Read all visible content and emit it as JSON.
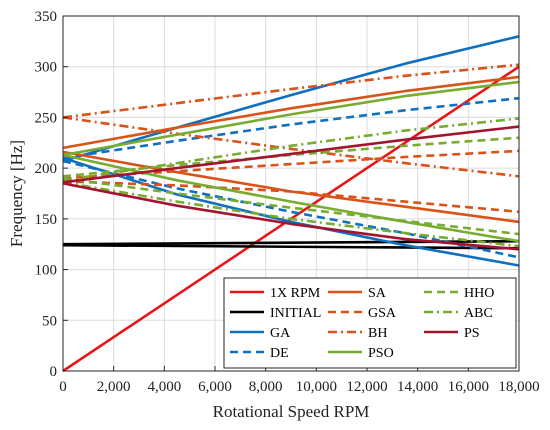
{
  "chart_data": {
    "type": "line",
    "xlabel": "Rotational Speed RPM",
    "ylabel": "Frequency [Hz]",
    "xlim": [
      0,
      18000
    ],
    "ylim": [
      0,
      350
    ],
    "xticks": [
      0,
      2000,
      4000,
      6000,
      8000,
      10000,
      12000,
      14000,
      16000,
      18000
    ],
    "xtick_labels": [
      "0",
      "2,000",
      "4,000",
      "6,000",
      "8,000",
      "10,000",
      "12,000",
      "14,000",
      "16,000",
      "18,000"
    ],
    "yticks": [
      0,
      50,
      100,
      150,
      200,
      250,
      300,
      350
    ],
    "ytick_labels": [
      "0",
      "50",
      "100",
      "150",
      "200",
      "250",
      "300",
      "350"
    ],
    "grid": true,
    "legend_position": "bottom-right",
    "legend": [
      "1X RPM",
      "INITIAL",
      "GA",
      "DE",
      "SA",
      "GSA",
      "BH",
      "PSO",
      "HHO",
      "ABC",
      "PS"
    ],
    "series": [
      {
        "name": "1X RPM",
        "color": "#e8161b",
        "dash": "solid",
        "x": [
          0,
          18000
        ],
        "y": [
          0,
          300
        ]
      },
      {
        "name": "INITIAL",
        "color": "#000000",
        "dash": "solid",
        "x": [
          0,
          18000
        ],
        "y": [
          125,
          128
        ]
      },
      {
        "name": "INITIAL",
        "color": "#000000",
        "dash": "solid",
        "x": [
          0,
          18000
        ],
        "y": [
          124,
          121
        ]
      },
      {
        "name": "GA",
        "color": "#1070c0",
        "dash": "solid",
        "x": [
          0,
          4500,
          9000,
          13500,
          18000
        ],
        "y": [
          207,
          240,
          272,
          303,
          330
        ]
      },
      {
        "name": "GA",
        "color": "#1070c0",
        "dash": "solid",
        "x": [
          0,
          4500,
          9000,
          13500,
          18000
        ],
        "y": [
          210,
          174,
          147,
          124,
          104
        ]
      },
      {
        "name": "DE",
        "color": "#1070c0",
        "dash": "dash",
        "x": [
          0,
          4500,
          9000,
          13500,
          18000
        ],
        "y": [
          210,
          227,
          243,
          257,
          269
        ]
      },
      {
        "name": "DE",
        "color": "#1070c0",
        "dash": "dash",
        "x": [
          0,
          4500,
          9000,
          13500,
          18000
        ],
        "y": [
          207,
          180,
          157,
          136,
          112
        ]
      },
      {
        "name": "SA",
        "color": "#d95319",
        "dash": "solid",
        "x": [
          0,
          4500,
          9000,
          13500,
          18000
        ],
        "y": [
          220,
          240,
          259,
          276,
          290
        ]
      },
      {
        "name": "SA",
        "color": "#d95319",
        "dash": "solid",
        "x": [
          0,
          4500,
          9000,
          13500,
          18000
        ],
        "y": [
          216,
          196,
          177,
          162,
          147
        ]
      },
      {
        "name": "GSA",
        "color": "#d95319",
        "dash": "dash",
        "x": [
          0,
          4500,
          9000,
          13500,
          18000
        ],
        "y": [
          190,
          197,
          204,
          211,
          217
        ]
      },
      {
        "name": "GSA",
        "color": "#d95319",
        "dash": "dash",
        "x": [
          0,
          4500,
          9000,
          13500,
          18000
        ],
        "y": [
          187,
          183,
          177,
          167,
          157
        ]
      },
      {
        "name": "BH",
        "color": "#d95319",
        "dash": "dashdot",
        "x": [
          0,
          4500,
          9000,
          13500,
          18000
        ],
        "y": [
          250,
          264,
          278,
          291,
          302
        ]
      },
      {
        "name": "BH",
        "color": "#d95319",
        "dash": "dashdot",
        "x": [
          0,
          4500,
          9000,
          13500,
          18000
        ],
        "y": [
          250,
          234,
          219,
          205,
          192
        ]
      },
      {
        "name": "PSO",
        "color": "#77ac30",
        "dash": "solid",
        "x": [
          0,
          4500,
          9000,
          13500,
          18000
        ],
        "y": [
          213,
          233,
          253,
          271,
          285
        ]
      },
      {
        "name": "PSO",
        "color": "#77ac30",
        "dash": "solid",
        "x": [
          0,
          4500,
          9000,
          13500,
          18000
        ],
        "y": [
          213,
          188,
          167,
          147,
          128
        ]
      },
      {
        "name": "HHO",
        "color": "#77ac30",
        "dash": "dash",
        "x": [
          0,
          4500,
          9000,
          13500,
          18000
        ],
        "y": [
          192,
          203,
          213,
          222,
          230
        ]
      },
      {
        "name": "HHO",
        "color": "#77ac30",
        "dash": "dash",
        "x": [
          0,
          4500,
          9000,
          13500,
          18000
        ],
        "y": [
          190,
          175,
          161,
          148,
          135
        ]
      },
      {
        "name": "ABC",
        "color": "#77ac30",
        "dash": "dashdot",
        "x": [
          0,
          4500,
          9000,
          13500,
          18000
        ],
        "y": [
          188,
          205,
          222,
          237,
          249
        ]
      },
      {
        "name": "ABC",
        "color": "#77ac30",
        "dash": "dashdot",
        "x": [
          0,
          4500,
          9000,
          13500,
          18000
        ],
        "y": [
          186,
          167,
          150,
          136,
          123
        ]
      },
      {
        "name": "PS",
        "color": "#a2142f",
        "dash": "solid",
        "x": [
          0,
          4500,
          9000,
          13500,
          18000
        ],
        "y": [
          186,
          200,
          214,
          228,
          241
        ]
      },
      {
        "name": "PS",
        "color": "#a2142f",
        "dash": "solid",
        "x": [
          0,
          4500,
          9000,
          13500,
          18000
        ],
        "y": [
          185,
          163,
          145,
          130,
          120
        ]
      }
    ]
  },
  "legend_items": [
    {
      "label": "1X RPM",
      "color": "#e8161b",
      "dash": "solid"
    },
    {
      "label": "SA",
      "color": "#d95319",
      "dash": "solid"
    },
    {
      "label": "HHO",
      "color": "#77ac30",
      "dash": "dash"
    },
    {
      "label": "INITIAL",
      "color": "#000000",
      "dash": "solid"
    },
    {
      "label": "GSA",
      "color": "#d95319",
      "dash": "dash"
    },
    {
      "label": "ABC",
      "color": "#77ac30",
      "dash": "dashdot"
    },
    {
      "label": "GA",
      "color": "#1070c0",
      "dash": "solid"
    },
    {
      "label": "BH",
      "color": "#d95319",
      "dash": "dashdot"
    },
    {
      "label": "PS",
      "color": "#a2142f",
      "dash": "solid"
    },
    {
      "label": "DE",
      "color": "#1070c0",
      "dash": "dash"
    },
    {
      "label": "PSO",
      "color": "#77ac30",
      "dash": "solid"
    }
  ]
}
